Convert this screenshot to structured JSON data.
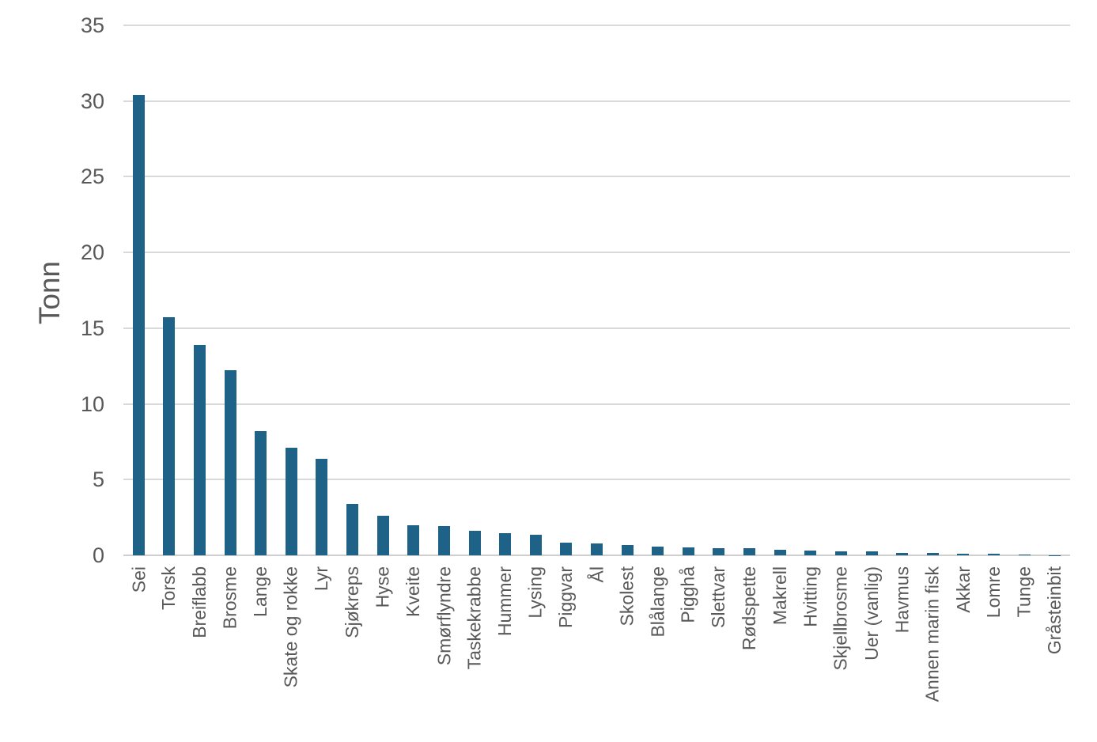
{
  "page": {
    "background_color": "#ffffff",
    "axis_text_color": "#595959",
    "gridline_color": "#d9d9d9",
    "bar_color": "#1f6287"
  },
  "chart_data": {
    "type": "bar",
    "title": "",
    "xlabel": "",
    "ylabel": "Tonn",
    "ylim": [
      0,
      35
    ],
    "yticks": [
      0,
      5,
      10,
      15,
      20,
      25,
      30,
      35
    ],
    "grid": true,
    "legend": false,
    "categories": [
      "Sei",
      "Torsk",
      "Breiflabb",
      "Brosme",
      "Lange",
      "Skate og rokke",
      "Lyr",
      "Sjøkreps",
      "Hyse",
      "Kveite",
      "Smørflyndre",
      "Taskekrabbe",
      "Hummer",
      "Lysing",
      "Piggvar",
      "Ål",
      "Skolest",
      "Blålange",
      "Pigghå",
      "Slettvar",
      "Rødspette",
      "Makrell",
      "Hvitting",
      "Skjellbrosme",
      "Uer (vanlig)",
      "Havmus",
      "Annen marin fisk",
      "Akkar",
      "Lomre",
      "Tunge",
      "Gråsteinbit"
    ],
    "values": [
      30.4,
      15.7,
      13.9,
      12.2,
      8.2,
      7.1,
      6.4,
      3.4,
      2.6,
      2.0,
      1.95,
      1.6,
      1.45,
      1.35,
      0.85,
      0.8,
      0.7,
      0.55,
      0.5,
      0.48,
      0.45,
      0.35,
      0.3,
      0.28,
      0.28,
      0.18,
      0.18,
      0.12,
      0.12,
      0.05,
      0.02
    ]
  }
}
